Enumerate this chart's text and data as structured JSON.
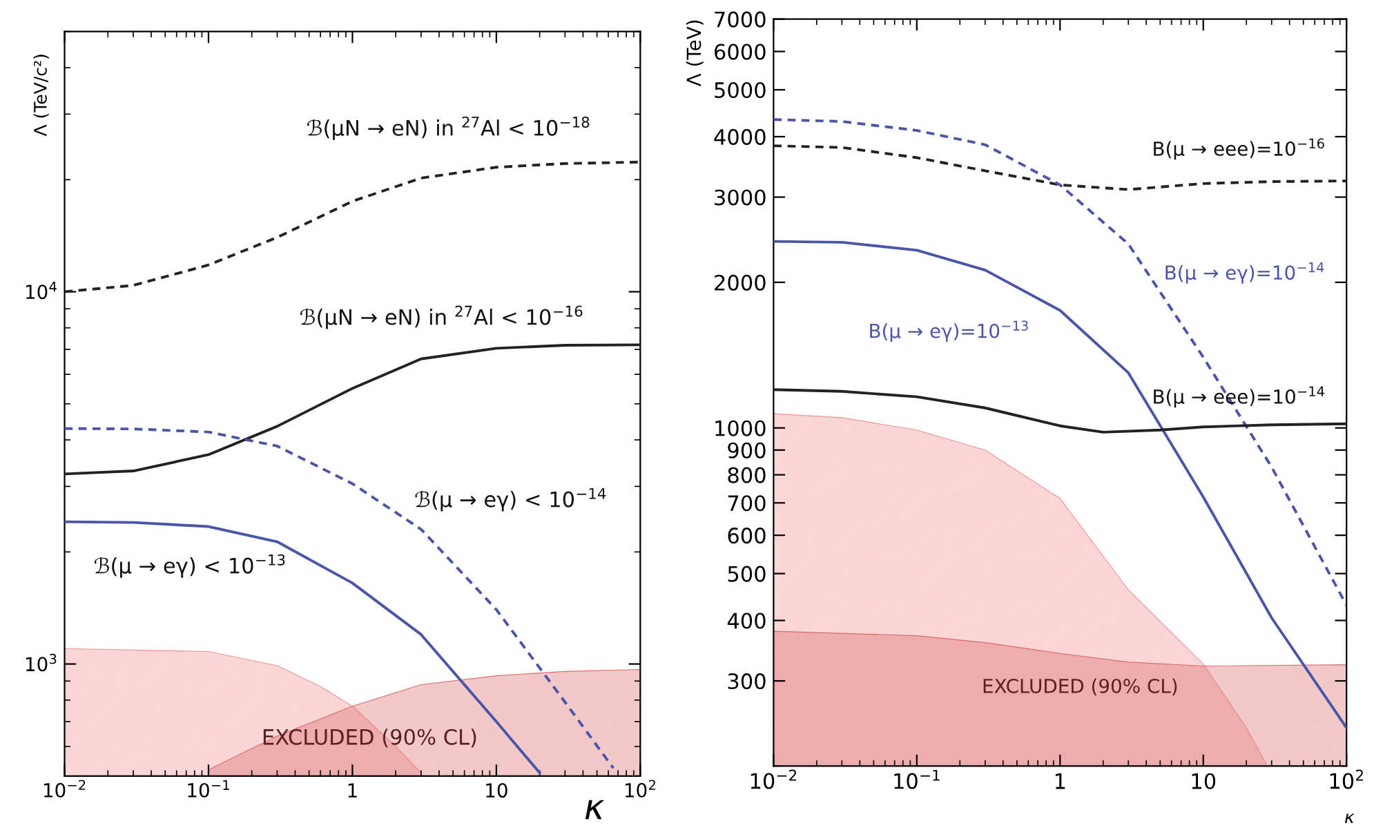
{
  "chart_data": [
    {
      "type": "line",
      "xlabel": "κ",
      "ylabel": "Λ (TeV/c²)",
      "log": "xy",
      "legend": false,
      "grid": false,
      "xlim": [
        0.01,
        100
      ],
      "ylim": [
        500,
        50000
      ],
      "xticks": [
        {
          "value": 0.01,
          "label": "10$^{−2}$"
        },
        {
          "value": 0.1,
          "label": "10$^{−1}$"
        },
        1,
        10,
        {
          "value": 100,
          "label": "10$^{2}$"
        }
      ],
      "yticks": [
        {
          "value": 1000,
          "label": "10$^{3}$"
        },
        {
          "value": 10000,
          "label": "10$^{4}$"
        }
      ],
      "series": [
        {
          "type": "area",
          "color": "#f08a8a",
          "x": [
            0.01,
            0.1,
            0.3,
            0.6,
            1,
            2,
            3
          ],
          "values": [
            1100,
            1080,
            990,
            870,
            770,
            600,
            510
          ]
        },
        {
          "type": "area",
          "color": "#d96060",
          "x": [
            0.1,
            0.3,
            1,
            3,
            10,
            30,
            100
          ],
          "values": [
            520,
            640,
            770,
            880,
            930,
            955,
            967
          ]
        },
        {
          "color": "#222222",
          "line_style": "dashed",
          "x": [
            0.01,
            0.03,
            0.1,
            0.3,
            1,
            3,
            10,
            30,
            100
          ],
          "values": [
            10000,
            10400,
            11800,
            14000,
            17500,
            20200,
            21600,
            22100,
            22300
          ]
        },
        {
          "color": "#222222",
          "line_style": "solid",
          "x": [
            0.01,
            0.03,
            0.1,
            0.3,
            1,
            3,
            10,
            30,
            100
          ],
          "values": [
            3240,
            3300,
            3650,
            4350,
            5500,
            6600,
            7050,
            7180,
            7200
          ]
        },
        {
          "color": "#4a55a8",
          "line_style": "dashed",
          "x": [
            0.01,
            0.03,
            0.1,
            0.3,
            1,
            3,
            10,
            30,
            65
          ],
          "values": [
            4290,
            4280,
            4200,
            3850,
            3050,
            2300,
            1400,
            790,
            525
          ]
        },
        {
          "color": "#4a55a8",
          "line_style": "solid",
          "x": [
            0.01,
            0.03,
            0.1,
            0.3,
            1,
            3,
            10,
            20
          ],
          "values": [
            2410,
            2400,
            2340,
            2130,
            1650,
            1200,
            700,
            510
          ]
        }
      ],
      "annotations": [
        "ℬ(μN → eN) in $^{27}$Al < 10$^{−18}$",
        "ℬ(μN → eN) in $^{27}$Al < 10$^{−16}$",
        "ℬ(μ → eγ) < 10$^{−14}$",
        "ℬ(μ → eγ) < 10$^{−13}$",
        "EXCLUDED (90% CL)"
      ]
    },
    {
      "type": "line",
      "xlabel": "κ",
      "ylabel": "Λ (TeV)",
      "log": "xy",
      "legend": false,
      "grid": false,
      "xlim": [
        0.01,
        100
      ],
      "ylim": [
        200,
        7000
      ],
      "xticks": [
        {
          "value": 0.01,
          "label": "10$^{−2}$"
        },
        {
          "value": 0.1,
          "label": "10$^{−1}$"
        },
        1,
        10,
        {
          "value": 100,
          "label": "10$^{2}$"
        }
      ],
      "yticks": [
        300,
        400,
        500,
        600,
        700,
        800,
        900,
        1000,
        2000,
        3000,
        4000,
        5000,
        6000,
        7000
      ],
      "series": [
        {
          "type": "area",
          "color": "#f08a8a",
          "x": [
            0.01,
            0.03,
            0.1,
            0.3,
            1,
            3,
            10,
            20,
            28
          ],
          "values": [
            1070,
            1050,
            990,
            900,
            715,
            463,
            325,
            240,
            200
          ]
        },
        {
          "type": "area",
          "color": "#d96060",
          "x": [
            0.01,
            0.1,
            0.3,
            1,
            3,
            10,
            100
          ],
          "values": [
            380,
            372,
            360,
            342,
            328,
            322,
            324
          ]
        },
        {
          "color": "#222222",
          "line_style": "dashed",
          "x": [
            0.01,
            0.03,
            0.1,
            0.3,
            1,
            3,
            10,
            30,
            100
          ],
          "values": [
            3830,
            3800,
            3620,
            3400,
            3180,
            3110,
            3200,
            3230,
            3240
          ]
        },
        {
          "color": "#4a55a8",
          "line_style": "dashed",
          "x": [
            0.01,
            0.03,
            0.1,
            0.3,
            1,
            3,
            10,
            30,
            100
          ],
          "values": [
            4340,
            4300,
            4120,
            3850,
            3180,
            2400,
            1400,
            830,
            430
          ]
        },
        {
          "color": "#4a55a8",
          "line_style": "solid",
          "x": [
            0.01,
            0.03,
            0.1,
            0.3,
            1,
            3,
            10,
            30,
            100
          ],
          "values": [
            2430,
            2420,
            2330,
            2120,
            1750,
            1300,
            720,
            405,
            240
          ]
        },
        {
          "color": "#222222",
          "line_style": "solid",
          "x": [
            0.01,
            0.03,
            0.1,
            0.3,
            1,
            2,
            5,
            10,
            30,
            100
          ],
          "values": [
            1200,
            1190,
            1160,
            1100,
            1010,
            980,
            990,
            1005,
            1015,
            1020
          ]
        }
      ],
      "annotations": [
        "B(μ → eee)=10$^{−16}$",
        "B(μ → eγ)=10$^{−14}$",
        "B(μ → eγ)=10$^{−13}$",
        "B(μ → eee)=10$^{−14}$",
        "EXCLUDED (90% CL)"
      ]
    }
  ]
}
